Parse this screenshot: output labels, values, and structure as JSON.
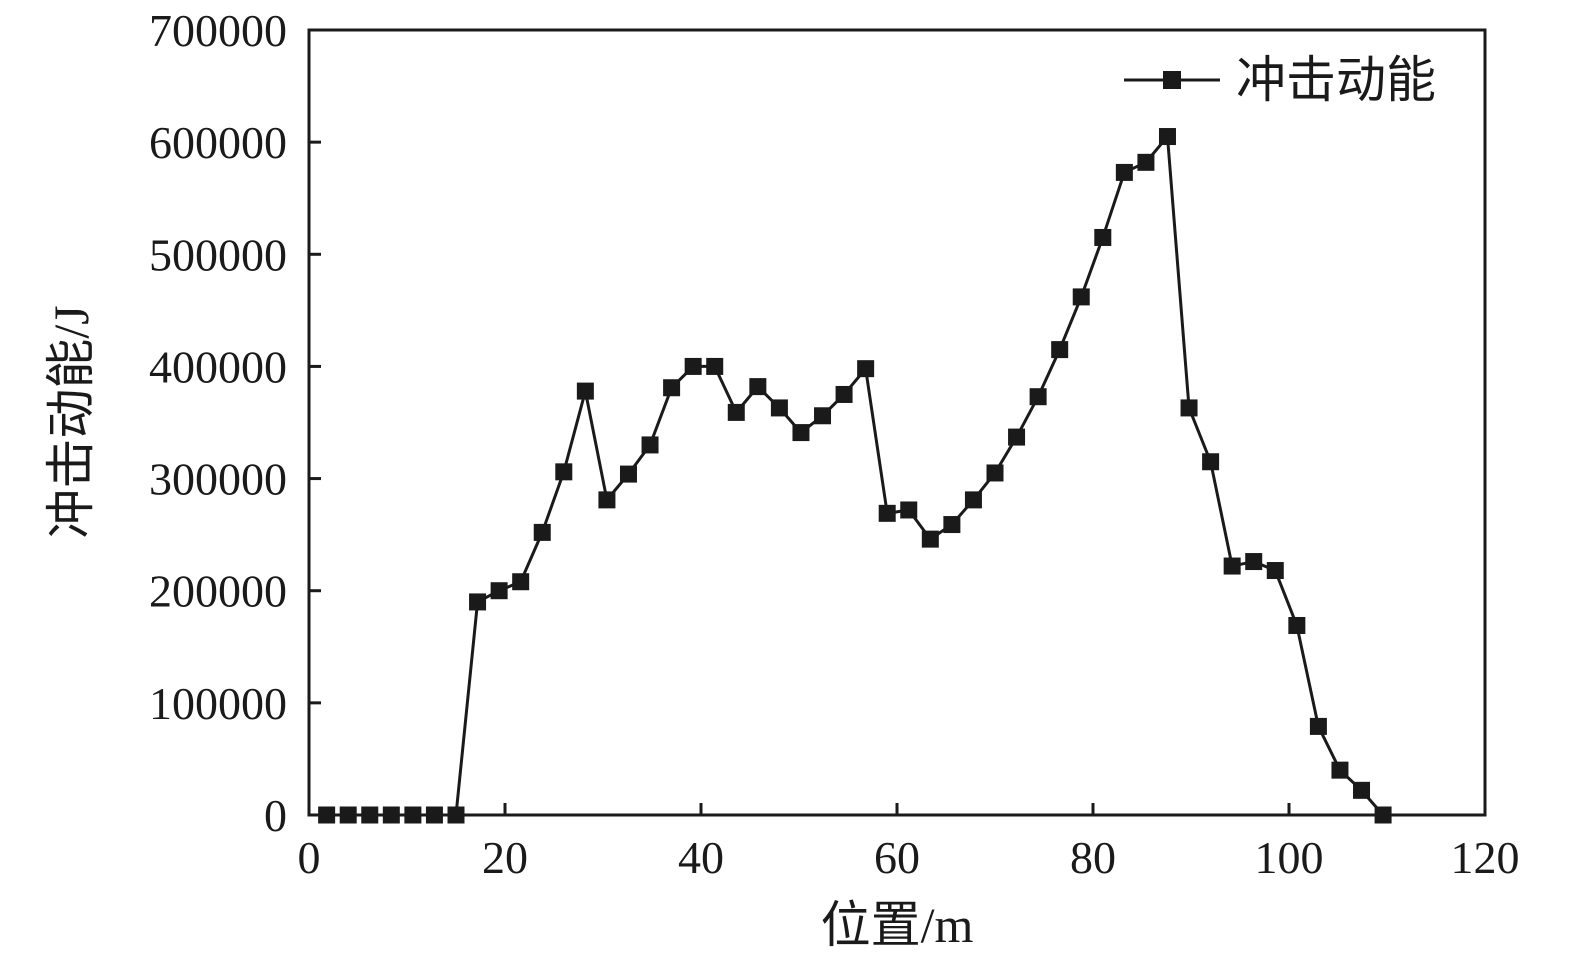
{
  "chart_data": {
    "type": "line",
    "title": "",
    "xlabel": "位置/m",
    "ylabel": "冲击动能/J",
    "xlim": [
      0,
      120
    ],
    "ylim": [
      0,
      700000
    ],
    "x_ticks": [
      0,
      20,
      40,
      60,
      80,
      100,
      120
    ],
    "x_tick_labels": [
      "0",
      "20",
      "40",
      "60",
      "80",
      "100",
      "120"
    ],
    "y_ticks": [
      0,
      100000,
      200000,
      300000,
      400000,
      500000,
      600000,
      700000
    ],
    "y_tick_labels": [
      "0",
      "100000",
      "200000",
      "300000",
      "400000",
      "500000",
      "600000",
      "700000"
    ],
    "grid": false,
    "legend_position": "top-right",
    "series": [
      {
        "name": "冲击动能",
        "color": "#1a1a1a",
        "marker": "square",
        "x": [
          1.8,
          4.0,
          6.2,
          8.4,
          10.6,
          12.8,
          15.0,
          17.2,
          19.4,
          21.6,
          23.8,
          26.0,
          28.2,
          30.4,
          32.6,
          34.8,
          37.0,
          39.2,
          41.4,
          43.6,
          45.8,
          48.0,
          50.2,
          52.4,
          54.6,
          56.8,
          59.0,
          61.2,
          63.4,
          65.6,
          67.8,
          70.0,
          72.2,
          74.4,
          76.6,
          78.8,
          81.0,
          83.2,
          85.4,
          87.6,
          89.8,
          92.0,
          94.2,
          96.4,
          98.6,
          100.8,
          103.0,
          105.2,
          107.4,
          109.6
        ],
        "values": [
          0,
          0,
          0,
          0,
          0,
          0,
          0,
          190000,
          200000,
          208000,
          252000,
          306000,
          378000,
          281000,
          304000,
          330000,
          381000,
          400000,
          400000,
          359000,
          382000,
          363000,
          341000,
          356000,
          375000,
          398000,
          269000,
          272000,
          246000,
          259000,
          281000,
          305000,
          337000,
          373000,
          415000,
          462000,
          515000,
          573000,
          582000,
          605000,
          363000,
          315000,
          222000,
          226000,
          218000,
          169000,
          79000,
          40000,
          22000,
          0
        ]
      }
    ]
  }
}
